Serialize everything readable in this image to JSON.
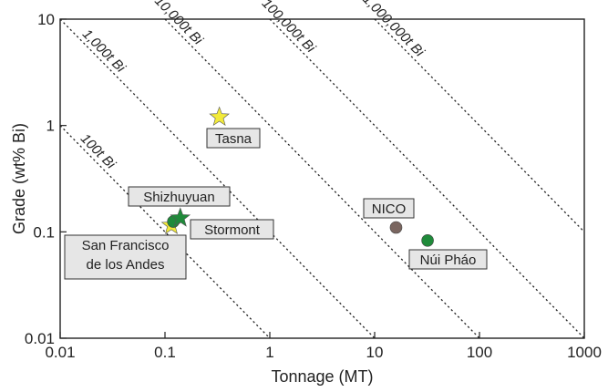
{
  "chart_data": {
    "type": "scatter",
    "title": "",
    "xlabel": "Tonnage (MT)",
    "ylabel": "Grade (wt% Bi)",
    "x_scale": "log",
    "y_scale": "log",
    "xlim": [
      0.01,
      1000
    ],
    "ylim": [
      0.01,
      10
    ],
    "x_ticks": [
      "0.01",
      "0.1",
      "1",
      "10",
      "100",
      "1000"
    ],
    "y_ticks": [
      "0.01",
      "0.1",
      "1",
      "10"
    ],
    "grid": false,
    "legend": "none",
    "isolines": [
      {
        "label": "100t Bi",
        "contained_t": 100
      },
      {
        "label": "1,000t Bi",
        "contained_t": 1000
      },
      {
        "label": "10,000t Bi",
        "contained_t": 10000
      },
      {
        "label": "100,000t Bi",
        "contained_t": 100000
      },
      {
        "label": "1,000,000t Bi",
        "contained_t": 1000000
      }
    ],
    "points": [
      {
        "label": "Tasna",
        "x": 0.33,
        "y": 1.2,
        "marker": "star",
        "color": "#f2ea3a"
      },
      {
        "label": "San Francisco\nde los Andes",
        "x": 0.115,
        "y": 0.115,
        "marker": "star",
        "color": "#f2ea3a"
      },
      {
        "label": "Shizhuyuan",
        "x": 0.12,
        "y": 0.125,
        "marker": "circle",
        "color": "#1f8a3a"
      },
      {
        "label": "Stormont",
        "x": 0.14,
        "y": 0.135,
        "marker": "star",
        "color": "#1f8a3a"
      },
      {
        "label": "NICO",
        "x": 16,
        "y": 0.11,
        "marker": "circle",
        "color": "#7a6660"
      },
      {
        "label": "Núi Pháo",
        "x": 32,
        "y": 0.083,
        "marker": "circle",
        "color": "#1f8a3a"
      }
    ]
  }
}
